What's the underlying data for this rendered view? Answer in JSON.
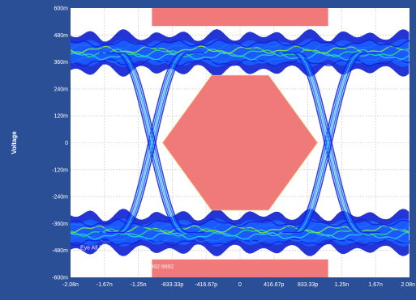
{
  "chart_data": {
    "type": "eye-diagram",
    "ylabel": "Voltage",
    "xlabel": "",
    "x_ticks": [
      "-2.08n",
      "-1.67n",
      "-1.25n",
      "-833.33p",
      "-416.67p",
      "0",
      "416.67p",
      "833.33p",
      "1.25n",
      "1.67n",
      "2.08n"
    ],
    "y_ticks": [
      "600m",
      "480m",
      "360m",
      "240m",
      "120m",
      "0",
      "-120m",
      "-240m",
      "-360m",
      "-480m",
      "-600m"
    ],
    "xlim_ps": [
      -2083.33,
      2083.33
    ],
    "ylim_mV": [
      -600,
      600
    ],
    "grid": true,
    "signal": {
      "high_level_mV": 400,
      "low_level_mV": -400,
      "crossing_times_ps": [
        -1083,
        1083
      ],
      "crossing_voltage_mV": 0,
      "rail_spread_mV": 45
    },
    "eye_mask": {
      "color": "#f07a7a",
      "polygon_ps_mV": [
        [
          -950,
          0
        ],
        [
          -350,
          300
        ],
        [
          350,
          300
        ],
        [
          950,
          0
        ],
        [
          350,
          -300
        ],
        [
          -350,
          -300
        ]
      ],
      "top_bar_ps": [
        -1083,
        1083
      ],
      "top_bar_mV": [
        520,
        600
      ],
      "bottom_bar_ps": [
        -1083,
        1083
      ],
      "bottom_bar_mV": [
        -600,
        -520
      ]
    },
    "annotations": {
      "bits_label": "Eye All Bits",
      "count_label": "992:9992"
    }
  }
}
